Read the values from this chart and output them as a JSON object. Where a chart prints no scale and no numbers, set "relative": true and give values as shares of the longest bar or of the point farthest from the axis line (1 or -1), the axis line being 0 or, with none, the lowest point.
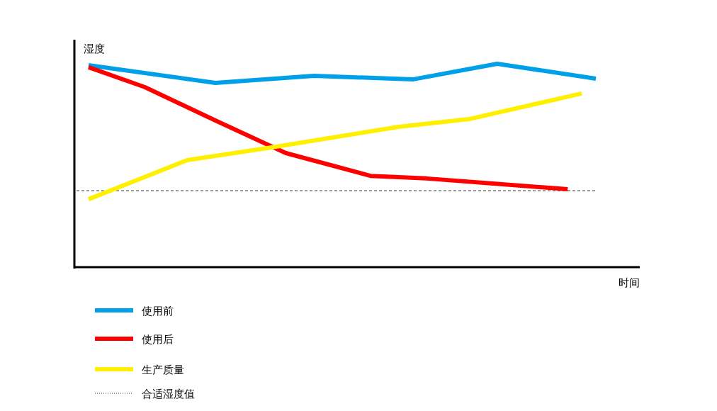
{
  "chart_data": {
    "type": "line",
    "relative": true,
    "xlabel": "时间",
    "ylabel": "湿度",
    "legend": "bottom left",
    "marker": "none",
    "line_style": "solid",
    "categories": [
      null,
      null,
      null,
      null,
      null,
      null,
      null,
      null,
      null,
      null,
      null,
      null,
      null,
      null,
      null,
      null,
      null,
      null,
      null,
      null,
      null,
      null,
      null,
      null,
      null,
      null,
      null,
      null,
      null,
      null,
      null,
      null,
      null,
      null,
      null,
      null,
      null
    ],
    "series": [
      {
        "name": "使用前",
        "color": "#00a0e9",
        "values": [
          0.993,
          null,
          null,
          null,
          null,
          null,
          null,
          null,
          null,
          0.906,
          null,
          null,
          null,
          null,
          null,
          null,
          0.941,
          null,
          null,
          null,
          null,
          null,
          null,
          0.923,
          null,
          null,
          null,
          null,
          null,
          1.0,
          null,
          null,
          null,
          null,
          null,
          null,
          0.927
        ]
      },
      {
        "name": "使用后",
        "color": "#ff0000",
        "values": [
          0.983,
          null,
          null,
          null,
          0.885,
          null,
          null,
          null,
          null,
          0.721,
          null,
          null,
          null,
          null,
          0.561,
          null,
          null,
          null,
          null,
          null,
          0.449,
          null,
          null,
          null,
          0.436,
          null,
          null,
          null,
          null,
          null,
          null,
          null,
          null,
          null,
          0.383,
          null,
          null
        ]
      },
      {
        "name": "生产质量",
        "color": "#fff000",
        "values": [
          0.334,
          null,
          null,
          null,
          null,
          null,
          null,
          0.526,
          null,
          null,
          null,
          null,
          null,
          0.589,
          null,
          null,
          null,
          null,
          null,
          null,
          null,
          null,
          0.69,
          null,
          null,
          null,
          null,
          0.728,
          null,
          null,
          null,
          null,
          null,
          null,
          null,
          0.854,
          null
        ]
      }
    ],
    "ref_lines": [
      {
        "axis": "y",
        "value": 0.376,
        "label": "合适湿度值",
        "color": "#333333",
        "line_style": "dashed"
      }
    ]
  }
}
